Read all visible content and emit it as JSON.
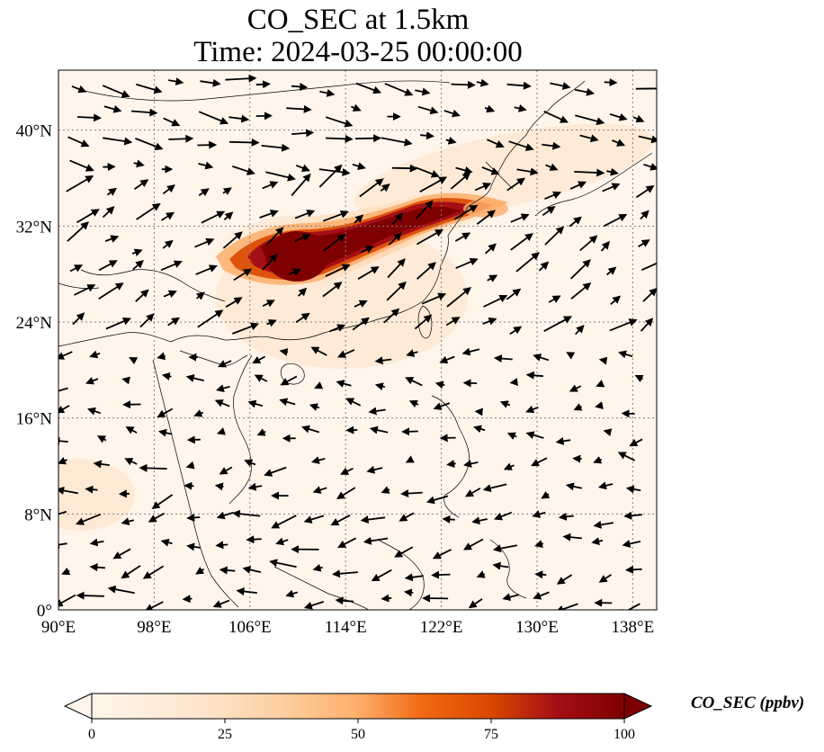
{
  "title": {
    "line1": "CO_SEC at 1.5km",
    "line2": "Time: 2024-03-25 00:00:00"
  },
  "map": {
    "lon_range": [
      90,
      140
    ],
    "lat_range": [
      0,
      45
    ],
    "lon_ticks": [
      {
        "value": 90,
        "label": "90°E"
      },
      {
        "value": 98,
        "label": "98°E"
      },
      {
        "value": 106,
        "label": "106°E"
      },
      {
        "value": 114,
        "label": "114°E"
      },
      {
        "value": 122,
        "label": "122°E"
      },
      {
        "value": 130,
        "label": "130°E"
      },
      {
        "value": 138,
        "label": "138°E"
      }
    ],
    "lat_ticks": [
      {
        "value": 0,
        "label": "0°"
      },
      {
        "value": 8,
        "label": "8°N"
      },
      {
        "value": 16,
        "label": "16°N"
      },
      {
        "value": 24,
        "label": "24°N"
      },
      {
        "value": 32,
        "label": "32°N"
      },
      {
        "value": 40,
        "label": "40°N"
      }
    ],
    "gridlines": true,
    "background_color": "#fff5eb",
    "plume_colors": [
      "#fdd0a2",
      "#fd8d3c",
      "#d94801",
      "#a50f15",
      "#7f0000"
    ]
  },
  "colorbar": {
    "label": "CO_SEC (ppbv)",
    "min": 0,
    "max": 100,
    "extend": "both",
    "colormap": "OrRd",
    "ticks": [
      {
        "value": 0,
        "label": "0"
      },
      {
        "value": 25,
        "label": "25"
      },
      {
        "value": 50,
        "label": "50"
      },
      {
        "value": 75,
        "label": "75"
      },
      {
        "value": 100,
        "label": "100"
      }
    ]
  }
}
